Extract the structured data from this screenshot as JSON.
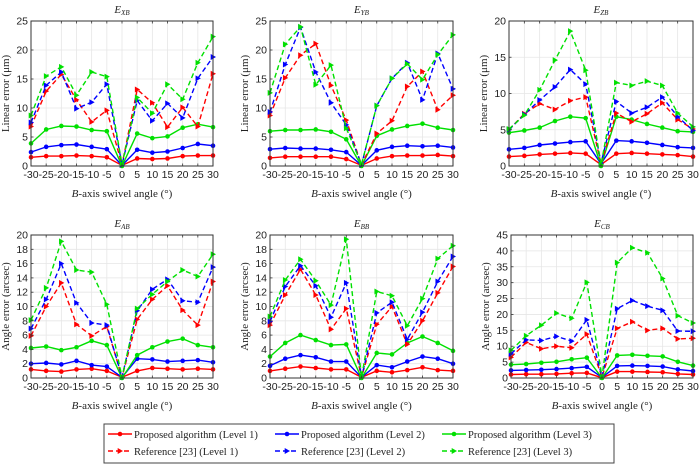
{
  "chart_data": [
    {
      "type": "line",
      "title": "E_XB",
      "title_main": "E",
      "title_sub": "XB",
      "xlabel": "B-axis swivel angle (°)",
      "ylabel": "Linear error (μm)",
      "x": [
        -30,
        -25,
        -20,
        -15,
        -10,
        -5,
        0,
        5,
        10,
        15,
        20,
        25,
        30
      ],
      "xticks": [
        "-30",
        "-25",
        "-20",
        "-15",
        "-10",
        "-5",
        "0",
        "5",
        "10",
        "15",
        "20",
        "25",
        "30"
      ],
      "ylim": [
        0,
        25
      ],
      "yticks": [
        0,
        5,
        10,
        15,
        20,
        25
      ],
      "grid": true,
      "series": [
        {
          "name": "Proposed algorithm (Level 1)",
          "values": [
            1.5,
            1.7,
            1.7,
            1.8,
            1.7,
            1.5,
            0.1,
            1.3,
            1.2,
            1.3,
            1.7,
            1.8,
            1.8
          ]
        },
        {
          "name": "Proposed algorithm (Level 2)",
          "values": [
            2.4,
            3.3,
            3.6,
            3.7,
            3.3,
            2.9,
            0.1,
            2.8,
            2.3,
            2.5,
            3.1,
            3.8,
            3.5
          ]
        },
        {
          "name": "Proposed algorithm (Level 3)",
          "values": [
            3.9,
            6.3,
            6.9,
            6.8,
            6.2,
            6.0,
            0.0,
            5.6,
            4.8,
            5.1,
            6.6,
            7.2,
            6.7
          ]
        },
        {
          "name": "Reference [23] (Level 1)",
          "values": [
            6.8,
            12.9,
            15.8,
            11.4,
            7.6,
            9.6,
            0.2,
            13.2,
            10.9,
            6.7,
            10.1,
            6.8,
            15.9
          ]
        },
        {
          "name": "Reference [23] (Level 2)",
          "values": [
            7.5,
            13.9,
            16.2,
            9.9,
            11.0,
            14.1,
            0.2,
            11.3,
            7.8,
            10.8,
            8.3,
            15.1,
            18.8
          ]
        },
        {
          "name": "Reference [23] (Level 3)",
          "values": [
            8.7,
            15.5,
            17.1,
            12.2,
            16.2,
            15.4,
            0.3,
            11.8,
            9.1,
            14.1,
            11.5,
            17.8,
            22.3
          ]
        }
      ]
    },
    {
      "type": "line",
      "title": "E_YB",
      "title_main": "E",
      "title_sub": "YB",
      "xlabel": "B-axis swivel angle (°)",
      "ylabel": "Linear error (μm)",
      "x": [
        -30,
        -25,
        -20,
        -15,
        -10,
        -5,
        0,
        5,
        10,
        15,
        20,
        25,
        30
      ],
      "xticks": [
        "-30",
        "-25",
        "-20",
        "-15",
        "-10",
        "-5",
        "0",
        "5",
        "10",
        "15",
        "20",
        "25",
        "30"
      ],
      "ylim": [
        0,
        25
      ],
      "yticks": [
        0,
        5,
        10,
        15,
        20,
        25
      ],
      "grid": true,
      "series": [
        {
          "name": "Proposed algorithm (Level 1)",
          "values": [
            1.4,
            1.6,
            1.6,
            1.6,
            1.6,
            1.2,
            0.1,
            1.3,
            1.7,
            1.8,
            1.8,
            1.9,
            1.7
          ]
        },
        {
          "name": "Proposed algorithm (Level 2)",
          "values": [
            2.9,
            3.1,
            3.0,
            3.0,
            2.8,
            2.4,
            0.1,
            2.7,
            3.3,
            3.5,
            3.4,
            3.5,
            3.2
          ]
        },
        {
          "name": "Proposed algorithm (Level 3)",
          "values": [
            6.0,
            6.2,
            6.2,
            6.3,
            5.9,
            4.6,
            0.0,
            5.2,
            6.3,
            6.9,
            7.3,
            6.6,
            6.2
          ]
        },
        {
          "name": "Reference [23] (Level 1)",
          "values": [
            8.7,
            15.2,
            19.1,
            21.1,
            13.9,
            7.9,
            0.2,
            5.6,
            7.8,
            13.7,
            16.3,
            9.7,
            12.2
          ]
        },
        {
          "name": "Reference [23] (Level 2)",
          "values": [
            9.3,
            17.5,
            23.9,
            16.2,
            10.9,
            7.1,
            0.2,
            10.4,
            15.1,
            17.8,
            11.4,
            19.4,
            13.3
          ]
        },
        {
          "name": "Reference [23] (Level 3)",
          "values": [
            12.6,
            21.0,
            24.0,
            14.0,
            17.4,
            6.5,
            0.3,
            10.4,
            15.1,
            17.6,
            14.9,
            19.2,
            22.6
          ]
        }
      ]
    },
    {
      "type": "line",
      "title": "E_ZB",
      "title_main": "E",
      "title_sub": "ZB",
      "xlabel": "B-axis swivel angle (°)",
      "ylabel": "Linear error (μm)",
      "x": [
        -30,
        -25,
        -20,
        -15,
        -10,
        -5,
        0,
        5,
        10,
        15,
        20,
        25,
        30
      ],
      "xticks": [
        "-30",
        "-25",
        "-20",
        "-15",
        "-10",
        "-5",
        "0",
        "5",
        "10",
        "15",
        "20",
        "25",
        "30"
      ],
      "ylim": [
        0,
        20
      ],
      "yticks": [
        0,
        5,
        10,
        15,
        20
      ],
      "grid": true,
      "series": [
        {
          "name": "Proposed algorithm (Level 1)",
          "values": [
            1.3,
            1.4,
            1.6,
            1.7,
            1.8,
            1.7,
            0.2,
            1.7,
            1.8,
            1.7,
            1.6,
            1.5,
            1.3
          ]
        },
        {
          "name": "Proposed algorithm (Level 2)",
          "values": [
            2.3,
            2.5,
            2.9,
            3.1,
            3.3,
            3.4,
            0.3,
            3.5,
            3.4,
            3.2,
            2.9,
            2.6,
            2.5
          ]
        },
        {
          "name": "Proposed algorithm (Level 3)",
          "values": [
            4.6,
            4.9,
            5.3,
            6.2,
            6.8,
            6.6,
            0.0,
            6.8,
            6.4,
            5.8,
            5.3,
            4.8,
            4.7
          ]
        },
        {
          "name": "Reference [23] (Level 1)",
          "values": [
            5.0,
            7.2,
            8.6,
            7.8,
            9.0,
            9.5,
            0.3,
            7.3,
            6.1,
            7.2,
            8.7,
            6.4,
            5.1
          ]
        },
        {
          "name": "Reference [23] (Level 2)",
          "values": [
            5.0,
            7.1,
            9.1,
            10.9,
            13.3,
            11.3,
            0.4,
            8.9,
            7.3,
            8.1,
            9.5,
            6.8,
            4.9
          ]
        },
        {
          "name": "Reference [23] (Level 3)",
          "values": [
            5.1,
            7.0,
            10.5,
            14.6,
            18.6,
            13.2,
            0.2,
            11.5,
            11.1,
            11.7,
            11.1,
            7.3,
            5.4
          ]
        }
      ]
    },
    {
      "type": "line",
      "title": "E_AB",
      "title_main": "E",
      "title_sub": "AB",
      "xlabel": "B-axis swivel angle (°)",
      "ylabel": "Angle error (arcsec)",
      "x": [
        -30,
        -25,
        -20,
        -15,
        -10,
        -5,
        0,
        5,
        10,
        15,
        20,
        25,
        30
      ],
      "xticks": [
        "-30",
        "-25",
        "-20",
        "-15",
        "-10",
        "-5",
        "0",
        "5",
        "10",
        "15",
        "20",
        "25",
        "30"
      ],
      "ylim": [
        0,
        20
      ],
      "yticks": [
        0,
        2,
        4,
        6,
        8,
        10,
        12,
        14,
        16,
        18,
        20
      ],
      "grid": true,
      "series": [
        {
          "name": "Proposed algorithm (Level 1)",
          "values": [
            1.2,
            1.0,
            0.9,
            1.2,
            1.3,
            1.0,
            0.1,
            1.0,
            1.4,
            1.3,
            1.2,
            1.3,
            1.2
          ]
        },
        {
          "name": "Proposed algorithm (Level 2)",
          "values": [
            2.0,
            2.1,
            1.9,
            2.4,
            1.8,
            1.6,
            0.1,
            2.7,
            2.6,
            2.3,
            2.4,
            2.5,
            2.2
          ]
        },
        {
          "name": "Proposed algorithm (Level 3)",
          "values": [
            4.2,
            4.4,
            3.9,
            4.3,
            5.2,
            4.6,
            0.0,
            3.2,
            4.3,
            5.1,
            5.5,
            4.6,
            4.3
          ]
        },
        {
          "name": "Reference [23] (Level 1)",
          "values": [
            5.9,
            10.0,
            13.3,
            7.5,
            5.9,
            7.2,
            0.1,
            8.2,
            11.0,
            12.9,
            9.5,
            7.4,
            13.5
          ]
        },
        {
          "name": "Reference [23] (Level 2)",
          "values": [
            6.9,
            11.0,
            16.0,
            10.5,
            7.7,
            7.4,
            0.1,
            9.4,
            12.4,
            13.8,
            10.8,
            10.6,
            15.5
          ]
        },
        {
          "name": "Reference [23] (Level 3)",
          "values": [
            8.1,
            12.6,
            19.1,
            15.1,
            14.8,
            10.3,
            0.1,
            9.7,
            11.7,
            13.5,
            15.1,
            14.2,
            17.3
          ]
        }
      ]
    },
    {
      "type": "line",
      "title": "E_BB",
      "title_main": "E",
      "title_sub": "BB",
      "xlabel": "B-axis swivel angle (°)",
      "ylabel": "Angle error (arcsec)",
      "x": [
        -30,
        -25,
        -20,
        -15,
        -10,
        -5,
        0,
        5,
        10,
        15,
        20,
        25,
        30
      ],
      "xticks": [
        "-30",
        "-25",
        "-20",
        "-15",
        "-10",
        "-5",
        "0",
        "5",
        "10",
        "15",
        "20",
        "25",
        "30"
      ],
      "ylim": [
        0,
        20
      ],
      "yticks": [
        0,
        2,
        4,
        6,
        8,
        10,
        12,
        14,
        16,
        18,
        20
      ],
      "grid": true,
      "series": [
        {
          "name": "Proposed algorithm (Level 1)",
          "values": [
            1.0,
            1.3,
            1.6,
            1.4,
            1.2,
            1.2,
            0.1,
            1.0,
            0.8,
            1.1,
            1.5,
            1.1,
            1.0
          ]
        },
        {
          "name": "Proposed algorithm (Level 2)",
          "values": [
            1.7,
            2.7,
            3.2,
            2.9,
            2.3,
            2.3,
            0.1,
            1.8,
            1.5,
            2.3,
            3.0,
            2.7,
            2.0
          ]
        },
        {
          "name": "Proposed algorithm (Level 3)",
          "values": [
            3.0,
            4.9,
            6.0,
            5.3,
            4.6,
            4.7,
            0.0,
            3.5,
            3.3,
            4.9,
            5.8,
            4.9,
            3.8
          ]
        },
        {
          "name": "Reference [23] (Level 1)",
          "values": [
            7.4,
            11.6,
            15.2,
            11.6,
            6.8,
            9.7,
            0.1,
            7.5,
            10.0,
            4.7,
            8.0,
            11.9,
            15.6
          ]
        },
        {
          "name": "Reference [23] (Level 2)",
          "values": [
            7.9,
            12.8,
            15.7,
            12.9,
            8.5,
            13.3,
            0.1,
            9.1,
            10.6,
            5.4,
            9.2,
            13.5,
            17.0
          ]
        },
        {
          "name": "Reference [23] (Level 3)",
          "values": [
            8.6,
            13.7,
            16.6,
            13.6,
            10.2,
            19.4,
            0.1,
            12.1,
            11.5,
            7.3,
            11.1,
            16.7,
            18.5
          ]
        }
      ]
    },
    {
      "type": "line",
      "title": "E_CB",
      "title_main": "E",
      "title_sub": "CB",
      "xlabel": "B-axis swivel angle (°)",
      "ylabel": "Angle error (arcsec)",
      "x": [
        -30,
        -25,
        -20,
        -15,
        -10,
        -5,
        0,
        5,
        10,
        15,
        20,
        25,
        30
      ],
      "xticks": [
        "-30",
        "-25",
        "-20",
        "-15",
        "-10",
        "-5",
        "0",
        "5",
        "10",
        "15",
        "20",
        "25",
        "30"
      ],
      "ylim": [
        0,
        45
      ],
      "yticks": [
        0,
        5,
        10,
        15,
        20,
        25,
        30,
        35,
        40,
        45
      ],
      "grid": true,
      "series": [
        {
          "name": "Proposed algorithm (Level 1)",
          "values": [
            1.1,
            1.2,
            1.2,
            1.3,
            1.5,
            1.6,
            0.1,
            2.0,
            2.0,
            1.9,
            1.8,
            1.3,
            1.1
          ]
        },
        {
          "name": "Proposed algorithm (Level 2)",
          "values": [
            2.4,
            2.5,
            2.6,
            2.8,
            3.1,
            3.5,
            0.2,
            3.8,
            3.9,
            3.8,
            3.6,
            2.7,
            2.2
          ]
        },
        {
          "name": "Proposed algorithm (Level 3)",
          "values": [
            4.2,
            4.4,
            4.8,
            5.1,
            5.9,
            6.4,
            0.0,
            7.1,
            7.3,
            7.0,
            6.8,
            5.1,
            3.9
          ]
        },
        {
          "name": "Reference [23] (Level 1)",
          "values": [
            6.5,
            11.2,
            9.2,
            10.0,
            9.5,
            13.8,
            0.3,
            15.6,
            17.7,
            15.0,
            15.6,
            12.3,
            12.5
          ]
        },
        {
          "name": "Reference [23] (Level 2)",
          "values": [
            7.6,
            12.0,
            11.8,
            13.1,
            11.6,
            18.3,
            0.4,
            21.8,
            24.4,
            22.6,
            21.3,
            14.8,
            14.7
          ]
        },
        {
          "name": "Reference [23] (Level 3)",
          "values": [
            8.7,
            13.3,
            16.6,
            20.4,
            18.8,
            30.1,
            0.3,
            36.3,
            41.0,
            39.4,
            31.3,
            19.6,
            17.3
          ]
        }
      ]
    }
  ],
  "legend": {
    "placement": "bottom-center",
    "items": [
      {
        "label": "Proposed algorithm (Level 1)",
        "color": "#ff0000",
        "style": "solid",
        "marker": "circle"
      },
      {
        "label": "Proposed algorithm (Level 2)",
        "color": "#0000ff",
        "style": "solid",
        "marker": "circle"
      },
      {
        "label": "Proposed algorithm (Level 3)",
        "color": "#00e000",
        "style": "solid",
        "marker": "circle"
      },
      {
        "label": "Reference [23]  (Level 1)",
        "color": "#ff0000",
        "style": "dashed",
        "marker": "triangle-right"
      },
      {
        "label": "Reference [23]  (Level 2)",
        "color": "#0000ff",
        "style": "dashed",
        "marker": "triangle-right"
      },
      {
        "label": "Reference [23]  (Level 3)",
        "color": "#00e000",
        "style": "dashed",
        "marker": "triangle-right"
      }
    ]
  },
  "series_colors": [
    "#ff0000",
    "#0000ff",
    "#00e000",
    "#ff0000",
    "#0000ff",
    "#00e000"
  ],
  "series_styles": [
    "solid",
    "solid",
    "solid",
    "dashed",
    "dashed",
    "dashed"
  ],
  "xlabel_italic_prefix": "B",
  "xlabel_rest": "-axis swivel angle (°)"
}
